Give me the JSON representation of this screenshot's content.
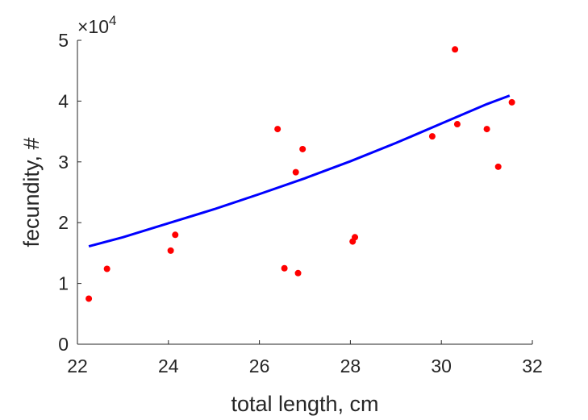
{
  "chart_data": {
    "type": "scatter",
    "xlabel": "total length, cm",
    "ylabel": "fecundity, #",
    "y_exponent_label": "×10",
    "y_exponent": "4",
    "xlim": [
      22,
      32
    ],
    "ylim": [
      0,
      50000
    ],
    "x_ticks": [
      22,
      24,
      26,
      28,
      30,
      32
    ],
    "y_ticks": [
      0,
      10000,
      20000,
      30000,
      40000,
      50000
    ],
    "x_tick_labels": [
      "22",
      "24",
      "26",
      "28",
      "30",
      "32"
    ],
    "y_tick_labels": [
      "0",
      "1",
      "2",
      "3",
      "4",
      "5"
    ],
    "grid": false,
    "series": [
      {
        "kind": "points",
        "color": "#ff0000",
        "points": [
          {
            "x": 22.25,
            "y": 7500
          },
          {
            "x": 22.65,
            "y": 12400
          },
          {
            "x": 24.05,
            "y": 15400
          },
          {
            "x": 24.15,
            "y": 18000
          },
          {
            "x": 26.4,
            "y": 35400
          },
          {
            "x": 26.55,
            "y": 12500
          },
          {
            "x": 26.8,
            "y": 28300
          },
          {
            "x": 26.85,
            "y": 11700
          },
          {
            "x": 26.95,
            "y": 32100
          },
          {
            "x": 28.05,
            "y": 16900
          },
          {
            "x": 28.1,
            "y": 17600
          },
          {
            "x": 29.8,
            "y": 34200
          },
          {
            "x": 30.3,
            "y": 48500
          },
          {
            "x": 30.35,
            "y": 36200
          },
          {
            "x": 31.0,
            "y": 35400
          },
          {
            "x": 31.25,
            "y": 29200
          },
          {
            "x": 31.55,
            "y": 39800
          }
        ]
      },
      {
        "kind": "fit-line",
        "color": "#0000ff",
        "points": [
          {
            "x": 22.25,
            "y": 16100
          },
          {
            "x": 23.0,
            "y": 17600
          },
          {
            "x": 24.0,
            "y": 19900
          },
          {
            "x": 25.0,
            "y": 22200
          },
          {
            "x": 26.0,
            "y": 24700
          },
          {
            "x": 27.0,
            "y": 27300
          },
          {
            "x": 28.0,
            "y": 30100
          },
          {
            "x": 29.0,
            "y": 33100
          },
          {
            "x": 30.0,
            "y": 36300
          },
          {
            "x": 31.0,
            "y": 39500
          },
          {
            "x": 31.5,
            "y": 40900
          }
        ]
      }
    ]
  }
}
